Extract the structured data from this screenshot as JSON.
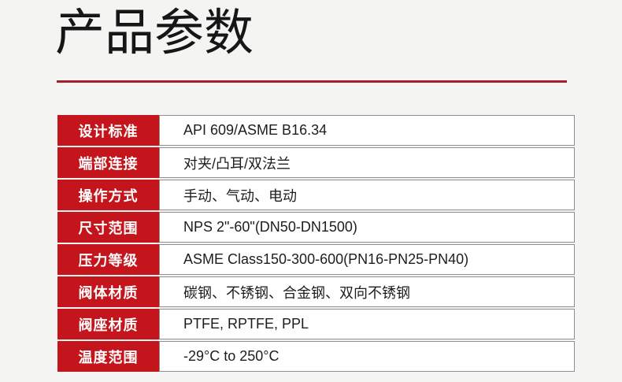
{
  "page": {
    "title": "产品参数"
  },
  "colors": {
    "background": "#f4f4f2",
    "label_cell_red": "#c4151c",
    "divider_red": "#a0212d",
    "title_text": "#161616",
    "value_text": "#1d1d1d",
    "value_border_gray": "#8f8f8f",
    "label_text": "#ffffff"
  },
  "table": {
    "rows": [
      {
        "label": "设计标准",
        "value": "API 609/ASME B16.34"
      },
      {
        "label": "端部连接",
        "value": "对夹/凸耳/双法兰"
      },
      {
        "label": "操作方式",
        "value": "手动、气动、电动"
      },
      {
        "label": "尺寸范围",
        "value": "NPS 2\"-60\"(DN50-DN1500)"
      },
      {
        "label": "压力等级",
        "value": "ASME Class150-300-600(PN16-PN25-PN40)"
      },
      {
        "label": "阀体材质",
        "value": "碳钢、不锈钢、合金钢、双向不锈钢"
      },
      {
        "label": "阀座材质",
        "value": "PTFE, RPTFE, PPL"
      },
      {
        "label": "温度范围",
        "value": "-29°C to 250°C"
      }
    ]
  }
}
